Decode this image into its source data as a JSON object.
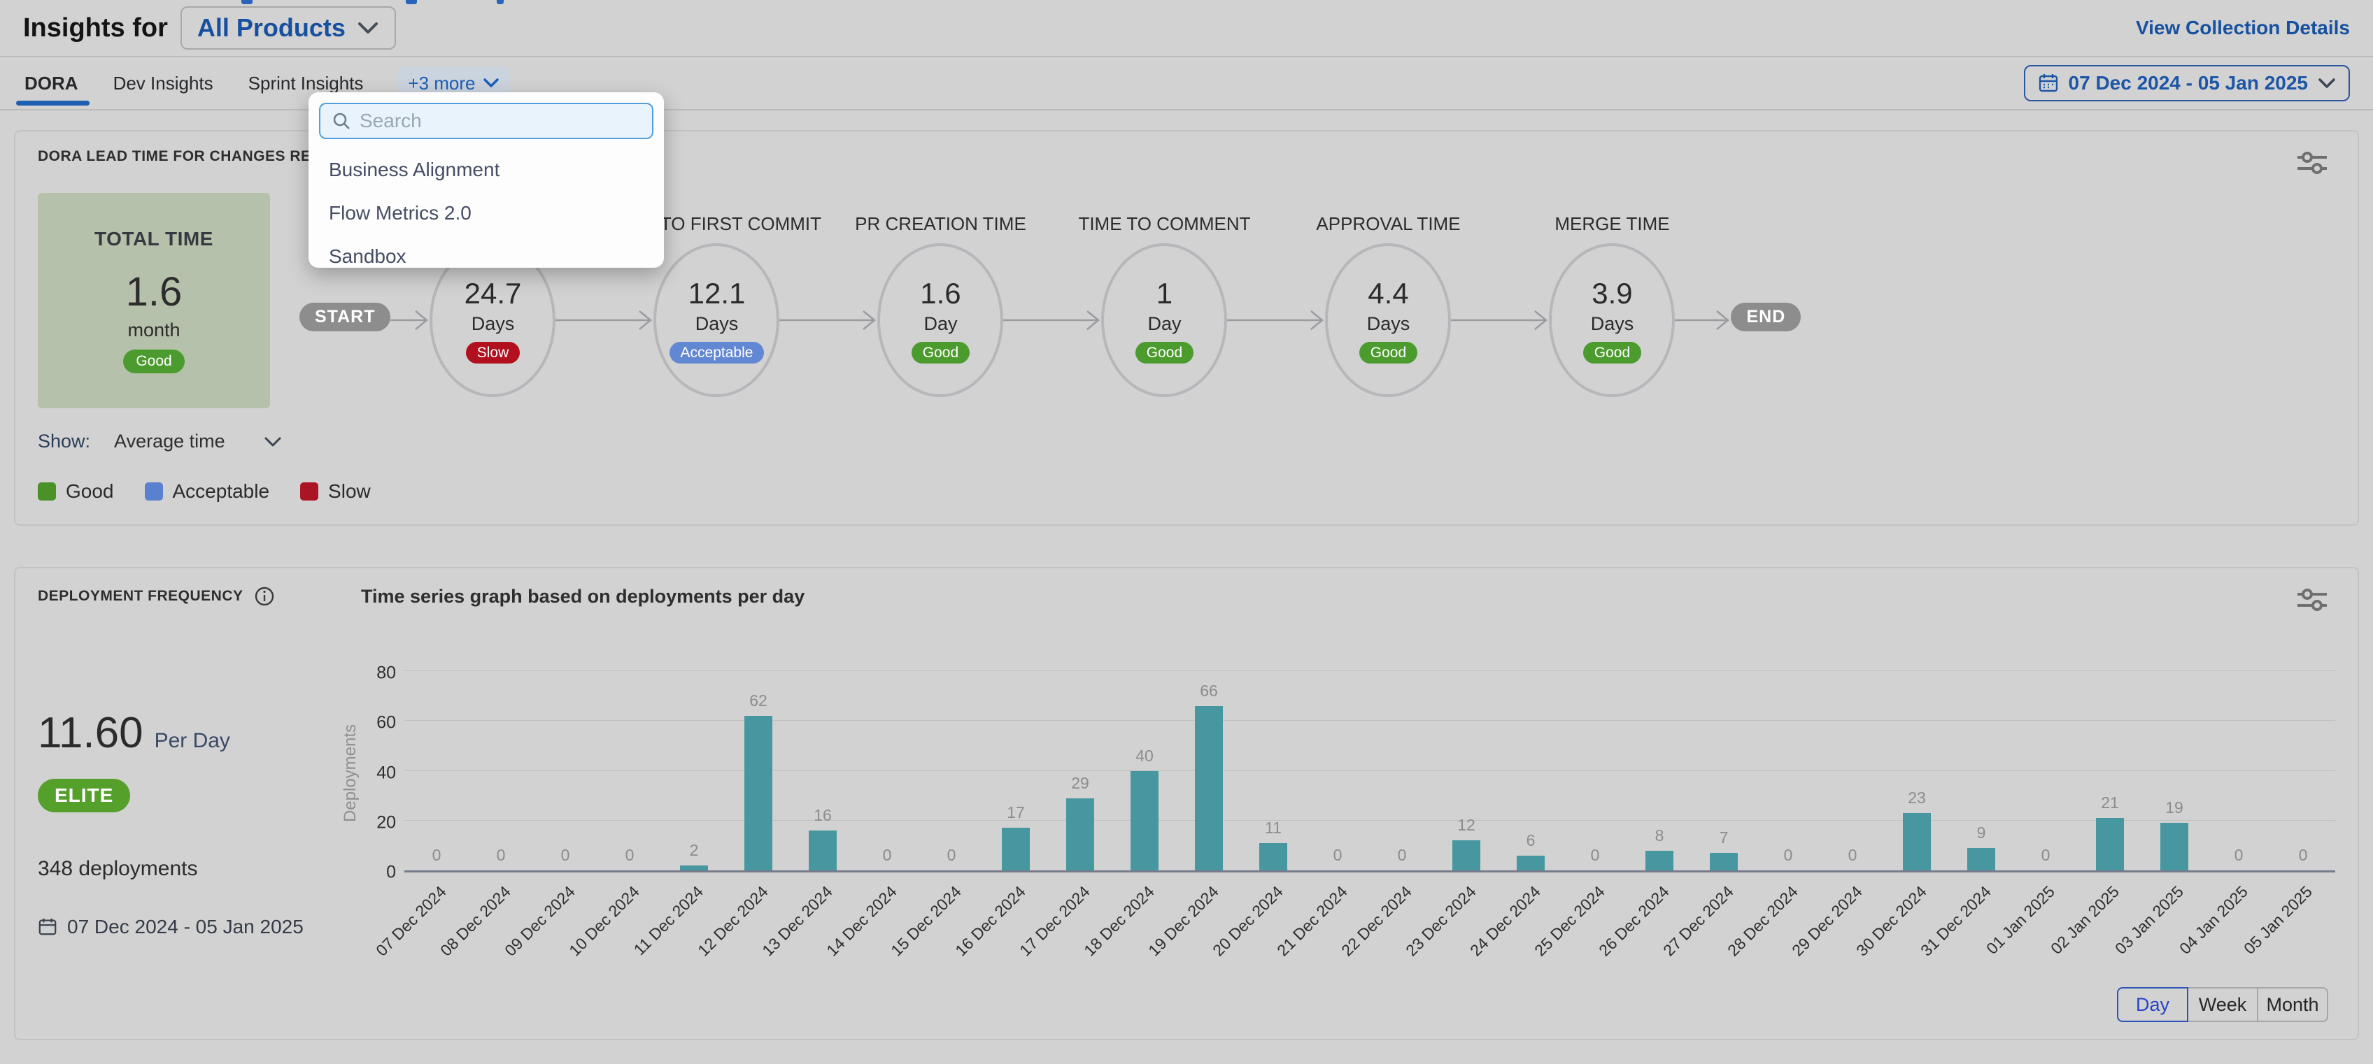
{
  "header": {
    "title": "Insights for",
    "product_selector": "All Products",
    "view_collection_details": "View Collection Details"
  },
  "tabs": {
    "items": [
      {
        "label": "DORA",
        "active": true
      },
      {
        "label": "Dev Insights",
        "active": false
      },
      {
        "label": "Sprint Insights",
        "active": false
      }
    ],
    "more_label": "+3 more",
    "date_range": "07 Dec 2024 - 05 Jan 2025"
  },
  "more_dropdown": {
    "search_placeholder": "Search",
    "items": [
      "Business Alignment",
      "Flow Metrics 2.0",
      "Sandbox"
    ]
  },
  "lead_time_card": {
    "title": "DORA LEAD TIME FOR CHANGES REPORT",
    "total": {
      "label": "TOTAL TIME",
      "value": "1.6",
      "unit": "month",
      "rating": "Good"
    },
    "start_label": "START",
    "end_label": "END",
    "stages": [
      {
        "label": "",
        "value": "24.7",
        "unit": "Days",
        "rating": "Slow"
      },
      {
        "label": "TIME TO FIRST COMMIT",
        "value": "12.1",
        "unit": "Days",
        "rating": "Acceptable"
      },
      {
        "label": "PR CREATION TIME",
        "value": "1.6",
        "unit": "Day",
        "rating": "Good"
      },
      {
        "label": "TIME TO COMMENT",
        "value": "1",
        "unit": "Day",
        "rating": "Good"
      },
      {
        "label": "APPROVAL TIME",
        "value": "4.4",
        "unit": "Days",
        "rating": "Good"
      },
      {
        "label": "MERGE TIME",
        "value": "3.9",
        "unit": "Days",
        "rating": "Good"
      }
    ],
    "show_label": "Show:",
    "show_value": "Average time",
    "legend": [
      {
        "label": "Good",
        "color": "#4a9128"
      },
      {
        "label": "Acceptable",
        "color": "#5b80cf"
      },
      {
        "label": "Slow",
        "color": "#ab1423"
      }
    ]
  },
  "deployment_card": {
    "title": "DEPLOYMENT FREQUENCY",
    "subtitle": "Time series graph based on deployments per day",
    "rate_value": "11.60",
    "rate_unit": "Per Day",
    "badge": "ELITE",
    "total_label": "348 deployments",
    "date_range": "07 Dec 2024 - 05 Jan 2025",
    "granularity": [
      {
        "label": "Day",
        "active": true
      },
      {
        "label": "Week",
        "active": false
      },
      {
        "label": "Month",
        "active": false
      }
    ]
  },
  "chart_data": {
    "type": "bar",
    "title": "Time series graph based on deployments per day",
    "xlabel": "",
    "ylabel": "Deployments",
    "ylim": [
      0,
      80
    ],
    "yticks": [
      0,
      20,
      40,
      60,
      80
    ],
    "grid": true,
    "bar_color": "#4797a0",
    "categories": [
      "07 Dec 2024",
      "08 Dec 2024",
      "09 Dec 2024",
      "10 Dec 2024",
      "11 Dec 2024",
      "12 Dec 2024",
      "13 Dec 2024",
      "14 Dec 2024",
      "15 Dec 2024",
      "16 Dec 2024",
      "17 Dec 2024",
      "18 Dec 2024",
      "19 Dec 2024",
      "20 Dec 2024",
      "21 Dec 2024",
      "22 Dec 2024",
      "23 Dec 2024",
      "24 Dec 2024",
      "25 Dec 2024",
      "26 Dec 2024",
      "27 Dec 2024",
      "28 Dec 2024",
      "29 Dec 2024",
      "30 Dec 2024",
      "31 Dec 2024",
      "01 Jan 2025",
      "02 Jan 2025",
      "03 Jan 2025",
      "04 Jan 2025",
      "05 Jan 2025"
    ],
    "values": [
      0,
      0,
      0,
      0,
      2,
      62,
      16,
      0,
      0,
      17,
      29,
      40,
      66,
      11,
      0,
      0,
      12,
      6,
      0,
      8,
      7,
      0,
      0,
      23,
      9,
      0,
      21,
      19,
      0,
      0
    ]
  },
  "colors": {
    "accent_blue": "#1d5fb0",
    "ratings": {
      "Good": "#4c9b2f",
      "Acceptable": "#6388d3",
      "Slow": "#b1101f"
    },
    "pill_gray": "#8d8d8d",
    "total_box": "#b5c1aa",
    "elite_green": "#55a02b",
    "bar_teal": "#4797a0"
  }
}
